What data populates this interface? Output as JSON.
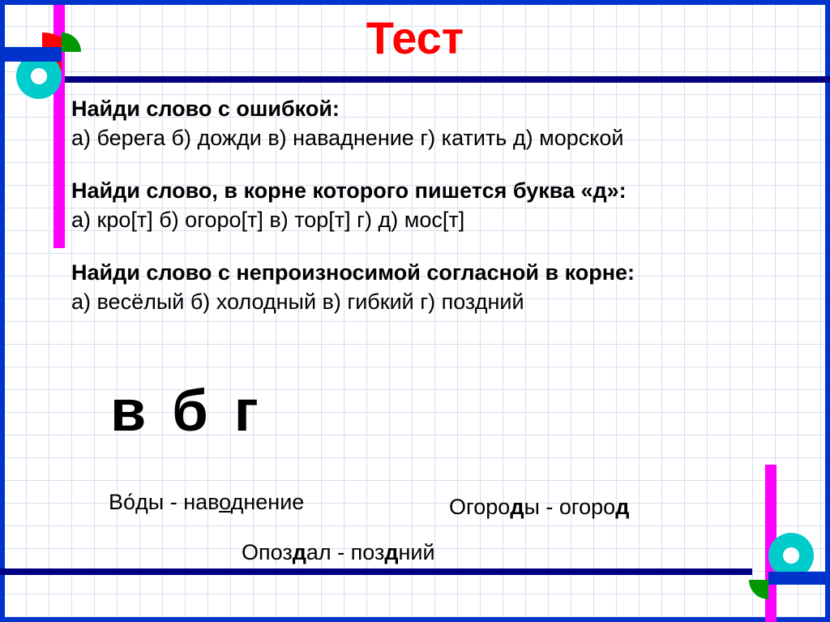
{
  "title": "Тест",
  "colors": {
    "border": "#0033cc",
    "title": "#ff0000",
    "header_line": "#000080",
    "grid": "#d6e0f0",
    "magenta": "#ff00ff",
    "cyan": "#00cccc",
    "green": "#009900",
    "red_shape": "#ff0000",
    "text": "#000000",
    "background": "#ffffff"
  },
  "typography": {
    "title_fontsize": 56,
    "body_fontsize": 27,
    "answers_fontsize": 72,
    "font_family": "Arial"
  },
  "questions": [
    {
      "prompt": "Найди слово с ошибкой:",
      "options": "а) берега  б) дожди в) наваднение г) катить д) морской"
    },
    {
      "prompt": "Найди слово, в корне которого пишется буква «д»:",
      "options": "а) кро[т] б) огоро[т]  в) тор[т]  г) д) мос[т]"
    },
    {
      "prompt": "Найди слово с непроизносимой согласной в корне:",
      "options": "а) весёлый  б) холодный в) гибкий г) поздний"
    }
  ],
  "answers_line": "в б г",
  "explanations": {
    "e1_pre": "В",
    "e1_stress": "о́",
    "e1_mid": "ды - нав",
    "e1_ul": "о",
    "e1_post": "днение",
    "e2_pre": "Огоро",
    "e2_b1": "д",
    "e2_mid": "ы - огоро",
    "e2_b2": "д",
    "e3_pre": "Опоз",
    "e3_b1": "д",
    "e3_mid": "ал - поз",
    "e3_b2": "д",
    "e3_post": "ний"
  }
}
